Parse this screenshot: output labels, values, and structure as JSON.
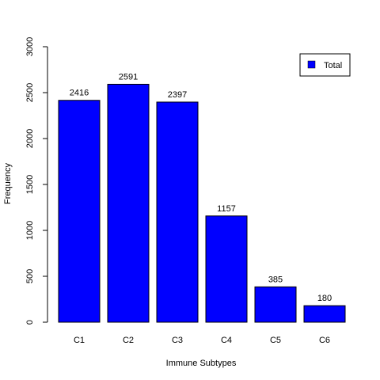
{
  "chart_data": {
    "type": "bar",
    "categories": [
      "C1",
      "C2",
      "C3",
      "C4",
      "C5",
      "C6"
    ],
    "series": [
      {
        "name": "Total",
        "values": [
          2416,
          2591,
          2397,
          1157,
          385,
          180
        ],
        "color": "#0000ff"
      }
    ],
    "data_labels": [
      "2416",
      "2591",
      "2397",
      "1157",
      "385",
      "180"
    ],
    "xlabel": "Immune Subtypes",
    "ylabel": "Frequency",
    "ylim": [
      0,
      3000
    ],
    "yticks": [
      0,
      500,
      1000,
      1500,
      2000,
      2500,
      3000
    ],
    "ytick_labels": [
      "0",
      "500",
      "1000",
      "1500",
      "2000",
      "2500",
      "3000"
    ],
    "grid": false,
    "legend_position": "top-right",
    "legend_label": "Total"
  }
}
